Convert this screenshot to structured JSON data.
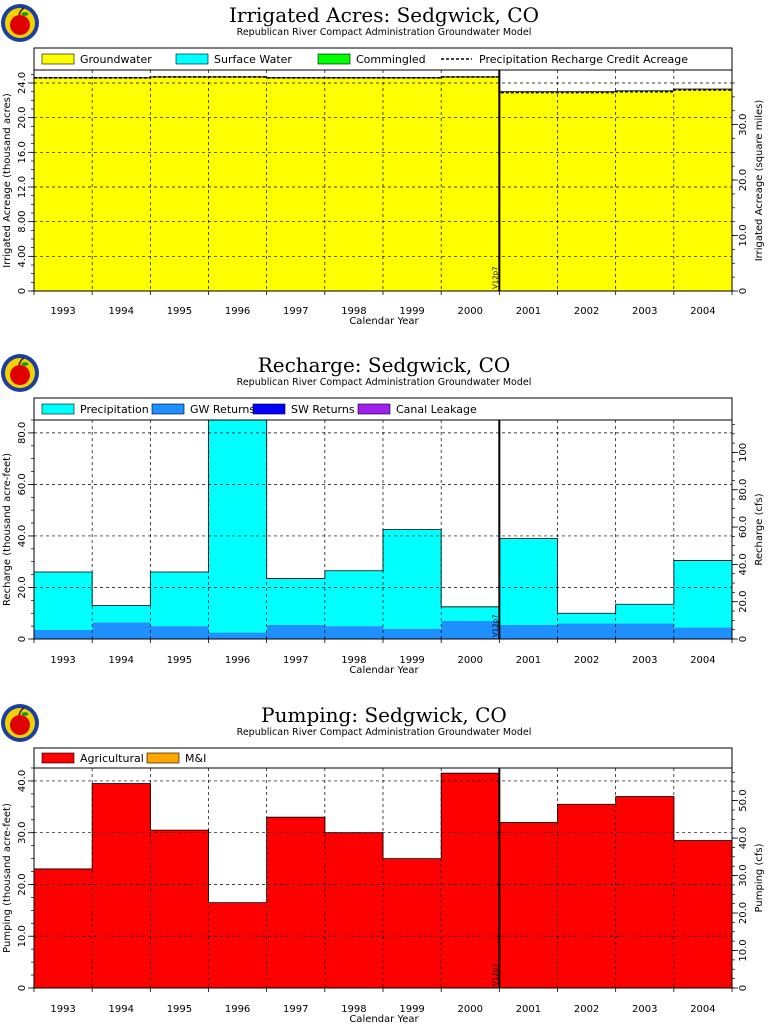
{
  "chart_data": [
    {
      "type": "area",
      "step": true,
      "title": "Irrigated Acres: Sedgwick, CO",
      "subtitle": "Republican River Compact Administration Groundwater Model",
      "xlabel": "Calendar Year",
      "ylabel": "Irrigated Acreage (thousand acres)",
      "y2label": "Irrigated Acreage (square miles)",
      "ylim": [
        0,
        25.5
      ],
      "yticks": [
        "0",
        "4.00",
        "8.00",
        "12.0",
        "16.0",
        "20.0",
        "24.0"
      ],
      "yticks_values": [
        0,
        4,
        8,
        12,
        16,
        20,
        24
      ],
      "y2ticks": [
        "0",
        "10.0",
        "20.0",
        "30.0"
      ],
      "y2ticks_values": [
        0,
        10,
        20,
        30
      ],
      "y2_per_y": 1.5625,
      "categories": [
        "1993",
        "1994",
        "1995",
        "1996",
        "1997",
        "1998",
        "1999",
        "2000",
        "2001",
        "2002",
        "2003",
        "2004"
      ],
      "marker": {
        "label": "V12p7",
        "after_category": "2000"
      },
      "legend": [
        {
          "name": "Groundwater",
          "color": "#ffff00",
          "style": "box"
        },
        {
          "name": "Surface Water",
          "color": "#00ffff",
          "style": "box"
        },
        {
          "name": "Commingled",
          "color": "#00ff00",
          "style": "box"
        },
        {
          "name": "Precipitation Recharge Credit Acreage",
          "style": "dashed"
        }
      ],
      "series": [
        {
          "name": "Groundwater",
          "color": "#ffff00",
          "values": [
            24.6,
            24.6,
            24.7,
            24.7,
            24.6,
            24.6,
            24.6,
            24.7,
            23.0,
            23.0,
            23.1,
            23.3
          ]
        },
        {
          "name": "Surface Water",
          "color": "#00ffff",
          "values": [
            0,
            0,
            0,
            0,
            0,
            0,
            0,
            0,
            0,
            0,
            0,
            0
          ]
        },
        {
          "name": "Commingled",
          "color": "#00ff00",
          "values": [
            0,
            0,
            0,
            0,
            0,
            0,
            0,
            0,
            0,
            0,
            0,
            0
          ]
        }
      ],
      "line": {
        "name": "Precipitation Recharge Credit Acreage",
        "values": [
          24.6,
          24.6,
          24.7,
          24.7,
          24.6,
          24.6,
          24.6,
          24.7,
          22.9,
          22.9,
          23.0,
          23.2
        ]
      },
      "grid": true,
      "legend_placement": "top"
    },
    {
      "type": "area",
      "step": true,
      "title": "Recharge: Sedgwick, CO",
      "subtitle": "Republican River Compact Administration Groundwater Model",
      "xlabel": "Calendar Year",
      "ylabel": "Recharge (thousand acre-feet)",
      "y2label": "Recharge (cfs)",
      "ylim": [
        0,
        85
      ],
      "yticks": [
        "0",
        "20.0",
        "40.0",
        "60.0",
        "80.0"
      ],
      "yticks_values": [
        0,
        20,
        40,
        60,
        80
      ],
      "y2ticks": [
        "0",
        "20.0",
        "40.0",
        "60.0",
        "80.0",
        "100"
      ],
      "y2ticks_values": [
        0,
        20,
        40,
        60,
        80,
        100
      ],
      "y2_per_y": 1.381,
      "categories": [
        "1993",
        "1994",
        "1995",
        "1996",
        "1997",
        "1998",
        "1999",
        "2000",
        "2001",
        "2002",
        "2003",
        "2004"
      ],
      "marker": {
        "label": "V12p7",
        "after_category": "2000"
      },
      "legend": [
        {
          "name": "Precipitation",
          "color": "#00ffff",
          "style": "box"
        },
        {
          "name": "GW Returns",
          "color": "#1e90ff",
          "style": "box"
        },
        {
          "name": "SW Returns",
          "color": "#0000ff",
          "style": "box"
        },
        {
          "name": "Canal Leakage",
          "color": "#a020f0",
          "style": "box"
        }
      ],
      "series": [
        {
          "name": "GW Returns",
          "color": "#1e90ff",
          "values": [
            3.5,
            6.5,
            5.0,
            2.5,
            5.5,
            5.0,
            4.0,
            7.0,
            5.5,
            6.0,
            6.0,
            4.5
          ]
        },
        {
          "name": "Precipitation",
          "color": "#00ffff",
          "values": [
            22.5,
            6.5,
            21.0,
            82.5,
            18.0,
            21.5,
            38.5,
            5.5,
            33.5,
            4.0,
            7.5,
            26.0
          ]
        },
        {
          "name": "SW Returns",
          "color": "#0000ff",
          "values": [
            0,
            0,
            0,
            0,
            0,
            0,
            0,
            0,
            0,
            0,
            0,
            0
          ]
        },
        {
          "name": "Canal Leakage",
          "color": "#a020f0",
          "values": [
            0,
            0,
            0,
            0,
            0,
            0,
            0,
            0,
            0,
            0,
            0,
            0
          ]
        }
      ],
      "grid": true,
      "legend_placement": "top"
    },
    {
      "type": "area",
      "step": true,
      "title": "Pumping: Sedgwick, CO",
      "subtitle": "Republican River Compact Administration Groundwater Model",
      "xlabel": "Calendar Year",
      "ylabel": "Pumping (thousand acre-feet)",
      "y2label": "Pumping (cfs)",
      "ylim": [
        0,
        42.5
      ],
      "yticks": [
        "0",
        "10.0",
        "20.0",
        "30.0",
        "40.0"
      ],
      "yticks_values": [
        0,
        10,
        20,
        30,
        40
      ],
      "y2ticks": [
        "0",
        "10.0",
        "20.0",
        "30.0",
        "40.0",
        "50.0"
      ],
      "y2ticks_values": [
        0,
        10,
        20,
        30,
        40,
        50
      ],
      "y2_per_y": 1.381,
      "categories": [
        "1993",
        "1994",
        "1995",
        "1996",
        "1997",
        "1998",
        "1999",
        "2000",
        "2001",
        "2002",
        "2003",
        "2004"
      ],
      "marker": {
        "label": "V12p7",
        "after_category": "2000"
      },
      "legend": [
        {
          "name": "Agricultural",
          "color": "#ff0000",
          "style": "box"
        },
        {
          "name": "M&I",
          "color": "#ffa500",
          "style": "box"
        }
      ],
      "series": [
        {
          "name": "Agricultural",
          "color": "#ff0000",
          "values": [
            23.0,
            39.5,
            30.5,
            16.5,
            33.0,
            30.0,
            25.0,
            41.5,
            32.0,
            35.5,
            37.0,
            28.5
          ]
        },
        {
          "name": "M&I",
          "color": "#ffa500",
          "values": [
            0,
            0,
            0,
            0,
            0,
            0,
            0,
            0,
            0,
            0,
            0,
            0
          ]
        }
      ],
      "grid": true,
      "legend_placement": "top"
    }
  ]
}
